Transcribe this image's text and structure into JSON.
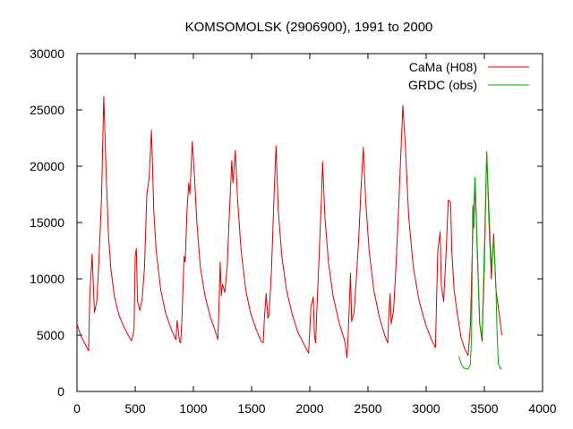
{
  "chart_data": {
    "type": "line",
    "title": "KOMSOMOLSK (2906900), 1991 to 2000",
    "xlabel": "",
    "ylabel": "",
    "xlim": [
      0,
      4000
    ],
    "ylim": [
      0,
      30000
    ],
    "xticks": [
      0,
      500,
      1000,
      1500,
      2000,
      2500,
      3000,
      3500,
      4000
    ],
    "yticks": [
      0,
      5000,
      10000,
      15000,
      20000,
      25000,
      30000
    ],
    "grid": false,
    "legend_position": "top-right",
    "series": [
      {
        "name": "CaMa (H08)",
        "color": "#dd0000",
        "points": [
          [
            0,
            6000
          ],
          [
            30,
            5000
          ],
          [
            70,
            4200
          ],
          [
            100,
            3600
          ],
          [
            110,
            8500
          ],
          [
            130,
            12200
          ],
          [
            150,
            7000
          ],
          [
            170,
            8000
          ],
          [
            190,
            12000
          ],
          [
            210,
            17000
          ],
          [
            230,
            26200
          ],
          [
            250,
            19500
          ],
          [
            270,
            14000
          ],
          [
            290,
            11000
          ],
          [
            320,
            8500
          ],
          [
            360,
            6800
          ],
          [
            400,
            5800
          ],
          [
            450,
            4800
          ],
          [
            470,
            4500
          ],
          [
            490,
            5500
          ],
          [
            500,
            12000
          ],
          [
            510,
            12700
          ],
          [
            520,
            8000
          ],
          [
            540,
            7200
          ],
          [
            560,
            8200
          ],
          [
            580,
            11000
          ],
          [
            600,
            17500
          ],
          [
            620,
            19000
          ],
          [
            640,
            23200
          ],
          [
            660,
            16000
          ],
          [
            680,
            12500
          ],
          [
            720,
            9000
          ],
          [
            760,
            7000
          ],
          [
            810,
            5500
          ],
          [
            850,
            4600
          ],
          [
            860,
            6300
          ],
          [
            880,
            4500
          ],
          [
            890,
            4300
          ],
          [
            900,
            6000
          ],
          [
            920,
            12000
          ],
          [
            930,
            11500
          ],
          [
            945,
            16000
          ],
          [
            960,
            18500
          ],
          [
            970,
            17500
          ],
          [
            990,
            22200
          ],
          [
            1010,
            19000
          ],
          [
            1030,
            15000
          ],
          [
            1060,
            11000
          ],
          [
            1100,
            8500
          ],
          [
            1140,
            6800
          ],
          [
            1180,
            5600
          ],
          [
            1210,
            4600
          ],
          [
            1220,
            7500
          ],
          [
            1230,
            11500
          ],
          [
            1240,
            8500
          ],
          [
            1250,
            9500
          ],
          [
            1270,
            8800
          ],
          [
            1290,
            11000
          ],
          [
            1310,
            16000
          ],
          [
            1330,
            20500
          ],
          [
            1340,
            18500
          ],
          [
            1360,
            21400
          ],
          [
            1380,
            17000
          ],
          [
            1410,
            12500
          ],
          [
            1450,
            9000
          ],
          [
            1490,
            7000
          ],
          [
            1540,
            5500
          ],
          [
            1580,
            4500
          ],
          [
            1600,
            4300
          ],
          [
            1610,
            6500
          ],
          [
            1625,
            8700
          ],
          [
            1640,
            6500
          ],
          [
            1650,
            6800
          ],
          [
            1670,
            10500
          ],
          [
            1690,
            16500
          ],
          [
            1710,
            21800
          ],
          [
            1730,
            16000
          ],
          [
            1760,
            12000
          ],
          [
            1800,
            9000
          ],
          [
            1850,
            6800
          ],
          [
            1900,
            5200
          ],
          [
            1950,
            4200
          ],
          [
            1990,
            3400
          ],
          [
            2000,
            5500
          ],
          [
            2010,
            7500
          ],
          [
            2030,
            8400
          ],
          [
            2040,
            5000
          ],
          [
            2050,
            4300
          ],
          [
            2060,
            7000
          ],
          [
            2080,
            12000
          ],
          [
            2100,
            17000
          ],
          [
            2110,
            20400
          ],
          [
            2130,
            15500
          ],
          [
            2160,
            11500
          ],
          [
            2200,
            8500
          ],
          [
            2250,
            6200
          ],
          [
            2300,
            4500
          ],
          [
            2320,
            3000
          ],
          [
            2330,
            5000
          ],
          [
            2350,
            10500
          ],
          [
            2360,
            6200
          ],
          [
            2380,
            7000
          ],
          [
            2400,
            10000
          ],
          [
            2420,
            13500
          ],
          [
            2440,
            18000
          ],
          [
            2460,
            21700
          ],
          [
            2480,
            17000
          ],
          [
            2510,
            12500
          ],
          [
            2550,
            9000
          ],
          [
            2600,
            6500
          ],
          [
            2650,
            4800
          ],
          [
            2670,
            4300
          ],
          [
            2680,
            7000
          ],
          [
            2690,
            8700
          ],
          [
            2700,
            6000
          ],
          [
            2720,
            7200
          ],
          [
            2740,
            11000
          ],
          [
            2760,
            15500
          ],
          [
            2780,
            20500
          ],
          [
            2800,
            25400
          ],
          [
            2820,
            22000
          ],
          [
            2850,
            15500
          ],
          [
            2890,
            11000
          ],
          [
            2940,
            8000
          ],
          [
            3000,
            5800
          ],
          [
            3050,
            4500
          ],
          [
            3080,
            3900
          ],
          [
            3090,
            8500
          ],
          [
            3100,
            12500
          ],
          [
            3120,
            14200
          ],
          [
            3130,
            9500
          ],
          [
            3150,
            8000
          ],
          [
            3170,
            12000
          ],
          [
            3190,
            17000
          ],
          [
            3210,
            16800
          ],
          [
            3220,
            12500
          ],
          [
            3240,
            9000
          ],
          [
            3270,
            6700
          ],
          [
            3300,
            4800
          ],
          [
            3330,
            3800
          ],
          [
            3360,
            3200
          ],
          [
            3380,
            5800
          ],
          [
            3400,
            14000
          ],
          [
            3420,
            19000
          ],
          [
            3440,
            12500
          ],
          [
            3460,
            6000
          ],
          [
            3480,
            4500
          ],
          [
            3500,
            11000
          ],
          [
            3520,
            21300
          ],
          [
            3540,
            15000
          ],
          [
            3560,
            10000
          ],
          [
            3580,
            14000
          ],
          [
            3600,
            9000
          ],
          [
            3620,
            7500
          ],
          [
            3650,
            5000
          ]
        ]
      },
      {
        "name": "GRDC (obs)",
        "color": "#00aa00",
        "points": [
          [
            3280,
            3100
          ],
          [
            3300,
            2500
          ],
          [
            3320,
            2100
          ],
          [
            3340,
            2000
          ],
          [
            3360,
            2000
          ],
          [
            3380,
            2400
          ],
          [
            3390,
            5000
          ],
          [
            3400,
            16500
          ],
          [
            3410,
            14500
          ],
          [
            3420,
            19000
          ],
          [
            3440,
            12000
          ],
          [
            3460,
            6000
          ],
          [
            3480,
            4800
          ],
          [
            3500,
            12500
          ],
          [
            3520,
            21300
          ],
          [
            3540,
            16000
          ],
          [
            3560,
            11000
          ],
          [
            3580,
            13500
          ],
          [
            3600,
            9000
          ],
          [
            3610,
            5000
          ],
          [
            3620,
            2500
          ],
          [
            3640,
            2000
          ],
          [
            3650,
            2100
          ]
        ]
      }
    ]
  }
}
